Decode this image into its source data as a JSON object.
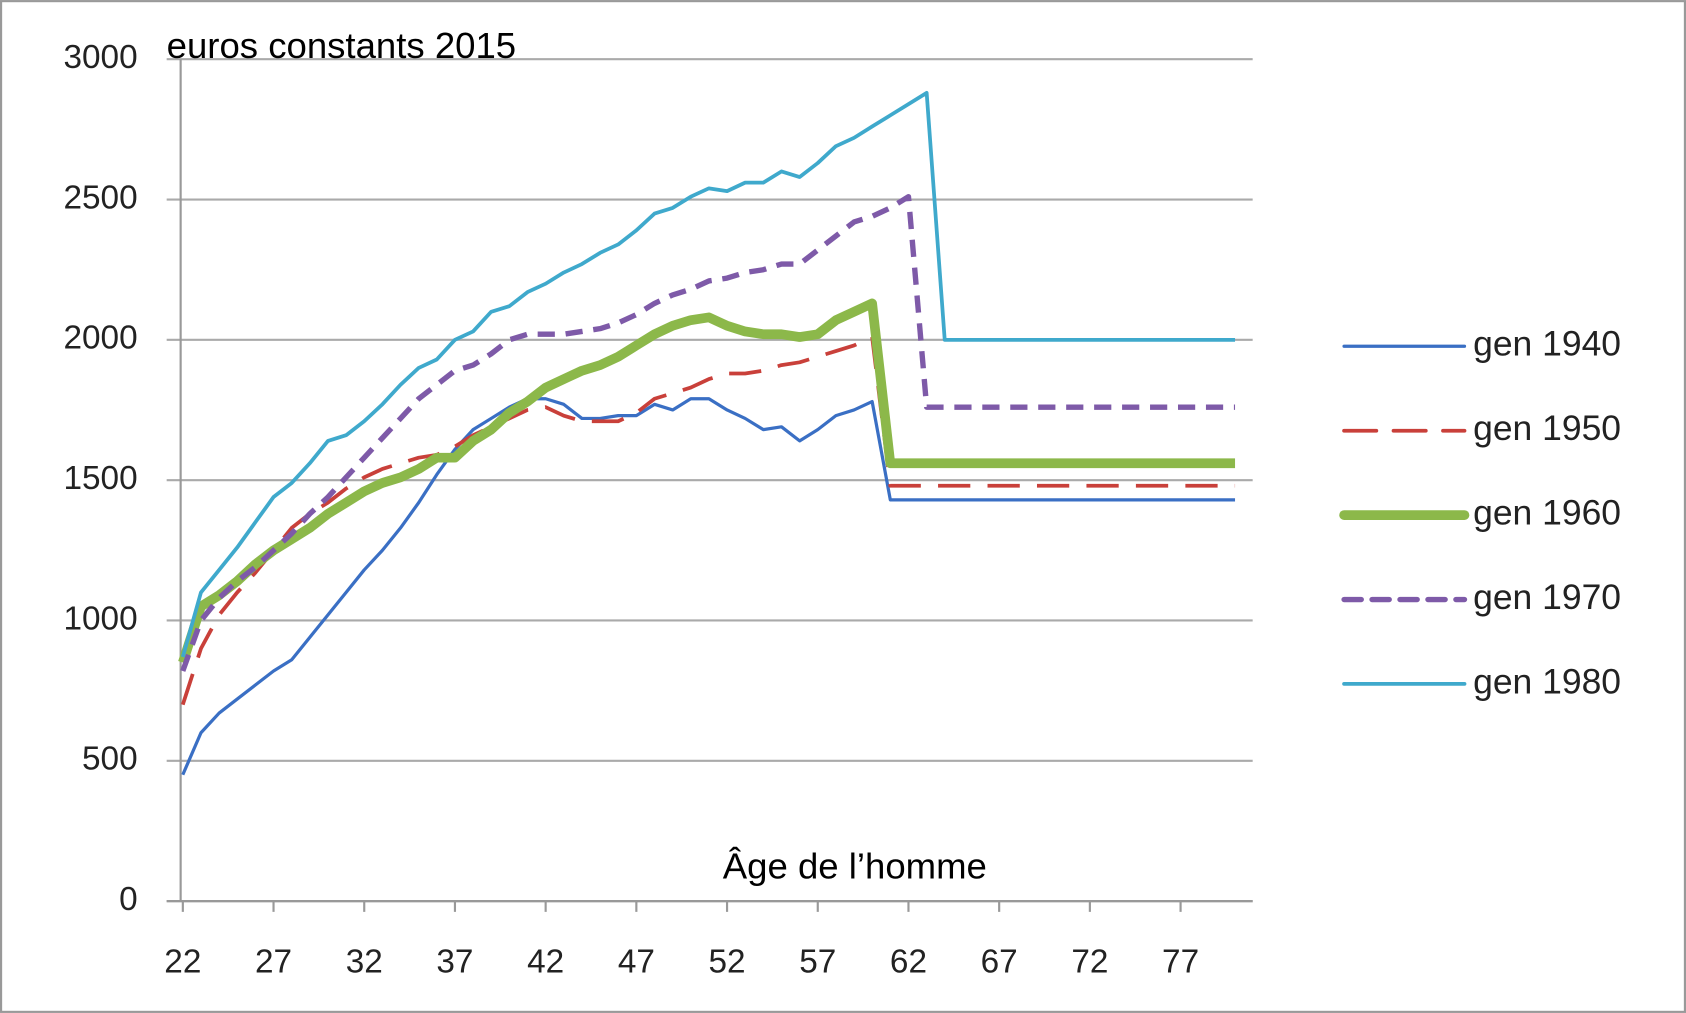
{
  "chart_data": {
    "type": "line",
    "annotations": [
      "euros constants 2015",
      "Âge de l’homme"
    ],
    "x": [
      22,
      23,
      24,
      25,
      26,
      27,
      28,
      29,
      30,
      31,
      32,
      33,
      34,
      35,
      36,
      37,
      38,
      39,
      40,
      41,
      42,
      43,
      44,
      45,
      46,
      47,
      48,
      49,
      50,
      51,
      52,
      53,
      54,
      55,
      56,
      57,
      58,
      59,
      60,
      61,
      62,
      63,
      64,
      65,
      66,
      67,
      68,
      69,
      70,
      71,
      72,
      73,
      74,
      75,
      76,
      77,
      78,
      79,
      80
    ],
    "series": [
      {
        "name": "gen 1940",
        "color": "#3a6fc4",
        "width": 3,
        "dash": false,
        "values": [
          450,
          600,
          670,
          720,
          770,
          820,
          860,
          940,
          1020,
          1100,
          1180,
          1250,
          1330,
          1420,
          1520,
          1610,
          1680,
          1720,
          1760,
          1790,
          1790,
          1770,
          1720,
          1720,
          1730,
          1730,
          1770,
          1750,
          1790,
          1790,
          1750,
          1720,
          1680,
          1690,
          1640,
          1680,
          1730,
          1750,
          1780,
          1430,
          1430,
          1430,
          1430,
          1430,
          1430,
          1430,
          1430,
          1430,
          1430,
          1430,
          1430,
          1430,
          1430,
          1430,
          1430,
          1430,
          1430,
          1430,
          1430
        ]
      },
      {
        "name": "gen 1950",
        "color": "#c9403a",
        "width": 3.5,
        "dash": true,
        "values": [
          700,
          900,
          1020,
          1100,
          1170,
          1250,
          1330,
          1380,
          1420,
          1470,
          1510,
          1540,
          1560,
          1580,
          1590,
          1620,
          1660,
          1690,
          1720,
          1750,
          1760,
          1730,
          1710,
          1710,
          1710,
          1740,
          1790,
          1810,
          1830,
          1860,
          1880,
          1880,
          1890,
          1910,
          1920,
          1940,
          1960,
          1980,
          2010,
          1480,
          1480,
          1480,
          1480,
          1480,
          1480,
          1480,
          1480,
          1480,
          1480,
          1480,
          1480,
          1480,
          1480,
          1480,
          1480,
          1480,
          1480,
          1480,
          1480
        ]
      },
      {
        "name": "gen 1960",
        "color": "#8cb84a",
        "width": 9,
        "dash": false,
        "values": [
          850,
          1050,
          1090,
          1140,
          1200,
          1250,
          1290,
          1330,
          1380,
          1420,
          1460,
          1490,
          1510,
          1540,
          1580,
          1580,
          1640,
          1680,
          1740,
          1780,
          1830,
          1860,
          1890,
          1910,
          1940,
          1980,
          2020,
          2050,
          2070,
          2080,
          2050,
          2030,
          2020,
          2020,
          2010,
          2020,
          2070,
          2100,
          2130,
          1560,
          1560,
          1560,
          1560,
          1560,
          1560,
          1560,
          1560,
          1560,
          1560,
          1560,
          1560,
          1560,
          1560,
          1560,
          1560,
          1560,
          1560,
          1560,
          1560
        ]
      },
      {
        "name": "gen 1970",
        "color": "#7e5aa8",
        "width": 5,
        "dash": true,
        "values": [
          820,
          1000,
          1080,
          1140,
          1190,
          1250,
          1310,
          1380,
          1440,
          1510,
          1580,
          1650,
          1720,
          1790,
          1840,
          1890,
          1910,
          1950,
          2000,
          2020,
          2020,
          2020,
          2030,
          2040,
          2060,
          2090,
          2130,
          2160,
          2180,
          2210,
          2220,
          2240,
          2250,
          2270,
          2270,
          2320,
          2370,
          2420,
          2440,
          2470,
          2510,
          1760,
          1760,
          1760,
          1760,
          1760,
          1760,
          1760,
          1760,
          1760,
          1760,
          1760,
          1760,
          1760,
          1760,
          1760,
          1760,
          1760,
          1760
        ]
      },
      {
        "name": "gen 1980",
        "color": "#3fa9cc",
        "width": 3.5,
        "dash": false,
        "values": [
          870,
          1100,
          1180,
          1260,
          1350,
          1440,
          1490,
          1560,
          1640,
          1660,
          1710,
          1770,
          1840,
          1900,
          1930,
          2000,
          2030,
          2100,
          2120,
          2170,
          2200,
          2240,
          2270,
          2310,
          2340,
          2390,
          2450,
          2470,
          2510,
          2540,
          2530,
          2560,
          2560,
          2600,
          2580,
          2630,
          2690,
          2720,
          2760,
          2800,
          2840,
          2880,
          2000,
          2000,
          2000,
          2000,
          2000,
          2000,
          2000,
          2000,
          2000,
          2000,
          2000,
          2000,
          2000,
          2000,
          2000,
          2000,
          2000
        ]
      }
    ],
    "xlim": [
      21.5,
      80.5
    ],
    "xticks": [
      22,
      27,
      32,
      37,
      42,
      47,
      52,
      57,
      62,
      67,
      72,
      77
    ],
    "ylim": [
      0,
      3000
    ],
    "yticks": [
      0,
      500,
      1000,
      1500,
      2000,
      2500,
      3000
    ],
    "grid": true,
    "legend": "right"
  }
}
